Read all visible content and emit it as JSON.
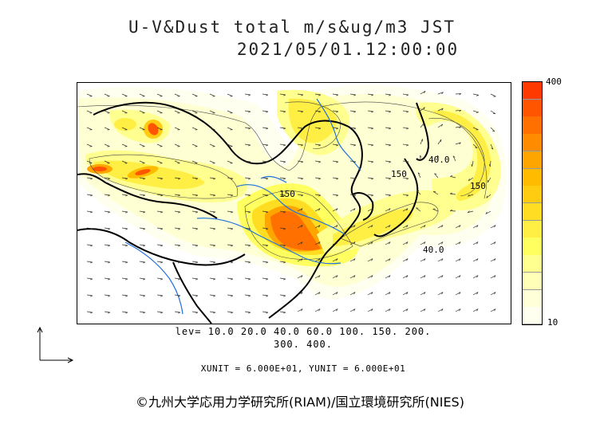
{
  "header": {
    "title": "U-V&Dust total m/s&ug/m3 JST",
    "datetime": "2021/05/01.12:00:00"
  },
  "legend": {
    "max_label": "400",
    "min_label": "10",
    "colors": [
      "#fffff0",
      "#ffffd8",
      "#ffffb8",
      "#ffff90",
      "#ffff60",
      "#ffee44",
      "#ffdd22",
      "#ffcc11",
      "#ffbb00",
      "#ffa500",
      "#ff8c00",
      "#ff7000",
      "#ff5500",
      "#ff3a00"
    ]
  },
  "levels": {
    "line1": "lev= 10.0 20.0 40.0 60.0 100. 150. 200.",
    "line2": "300. 400."
  },
  "units": {
    "text": "XUNIT = 6.000E+01, YUNIT = 6.000E+01"
  },
  "contour_labels": [
    "150",
    "40.0",
    "150",
    "40.0",
    "150"
  ],
  "credit": {
    "text": "©九州大学応用力学研究所(RIAM)/国立環境研究所(NIES)"
  },
  "colors": {
    "coast": "#000000",
    "river": "#1f6fdc",
    "vector": "#333333"
  }
}
